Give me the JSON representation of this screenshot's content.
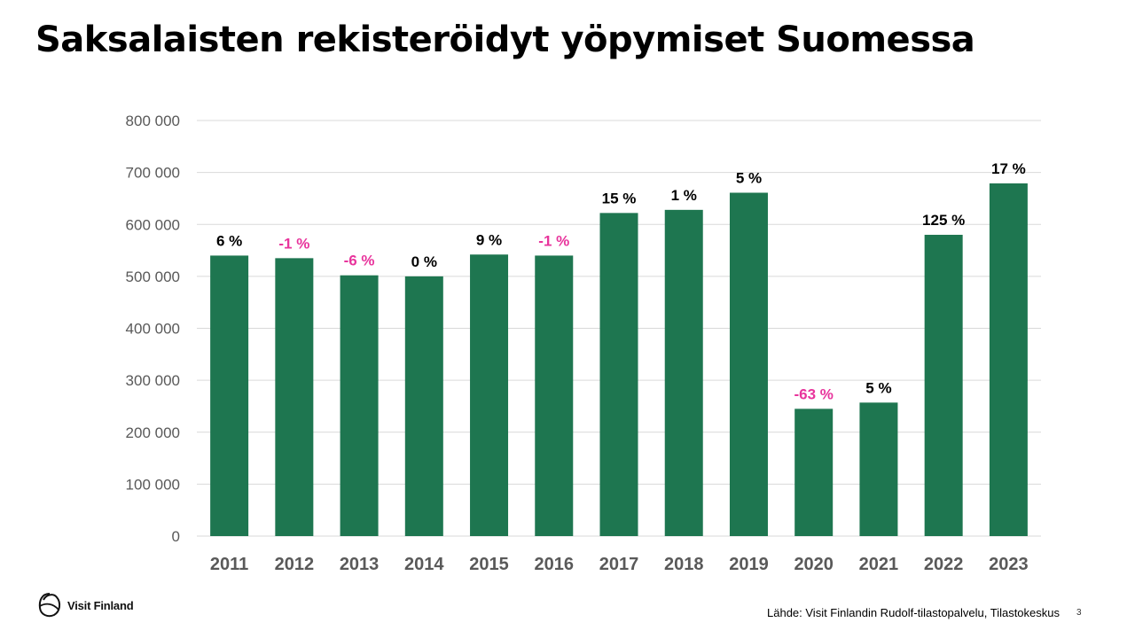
{
  "title": "Saksalaisten rekisteröidyt yöpymiset Suomessa",
  "colors": {
    "bar": "#1e7650",
    "positive_label": "#000000",
    "negative_label": "#e8349c",
    "gridline": "#d9d9d9",
    "axis_text": "#595959"
  },
  "chart_data": {
    "type": "bar",
    "title": "Saksalaisten rekisteröidyt yöpymiset Suomessa",
    "xlabel": "",
    "ylabel": "",
    "ylim": [
      0,
      800000
    ],
    "yticks": [
      0,
      100000,
      200000,
      300000,
      400000,
      500000,
      600000,
      700000,
      800000
    ],
    "ytick_labels": [
      "0",
      "100 000",
      "200 000",
      "300 000",
      "400 000",
      "500 000",
      "600 000",
      "700 000",
      "800 000"
    ],
    "categories": [
      "2011",
      "2012",
      "2013",
      "2014",
      "2015",
      "2016",
      "2017",
      "2018",
      "2019",
      "2020",
      "2021",
      "2022",
      "2023"
    ],
    "values": [
      540000,
      535000,
      502000,
      500000,
      542000,
      540000,
      622000,
      628000,
      661000,
      245000,
      257000,
      580000,
      679000
    ],
    "change_labels": [
      "6 %",
      "-1 %",
      "-6 %",
      "0 %",
      "9 %",
      "-1 %",
      "15 %",
      "1 %",
      "5 %",
      "-63 %",
      "5 %",
      "125 %",
      "17 %"
    ],
    "grid": true,
    "legend": "none"
  },
  "footer": {
    "logo_text": "Visit Finland",
    "source": "Lähde: Visit Finlandin Rudolf-tilastopalvelu, Tilastokeskus",
    "page_number": "3"
  }
}
